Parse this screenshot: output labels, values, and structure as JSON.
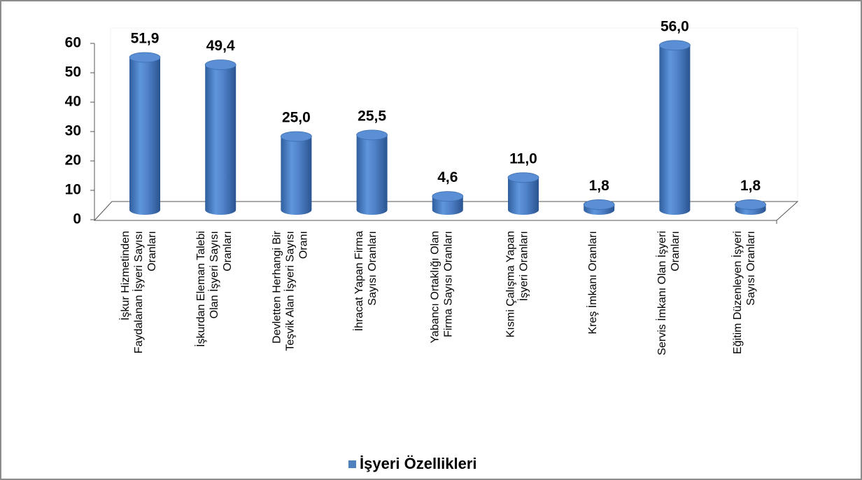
{
  "chart_data": {
    "type": "bar3d",
    "categories": [
      "İşkur Hizmetinden Faydalanan İşyeri Sayısı Oranları",
      "İşkurdan Eleman Talebi Olan İşyeri Sayısı Oranları",
      "Devletten Herhangi Bir Teşvik Alan İşyeri Sayısı Oranı",
      "İhracat Yapan Firma Sayısı Oranları",
      "Yabancı Ortaklığı Olan Firma Sayısı Oranları",
      "Kısmi Çalışma Yapan İşyeri Oranları",
      "Kreş İmkanı Oranları",
      "Servis İmkanı Olan İşyeri Oranları",
      "Eğitim Düzenleyen İşyeri Sayısı Oranları"
    ],
    "series": [
      {
        "name": "İşyeri Özellikleri",
        "color": "#4f81bd",
        "values": [
          51.9,
          49.4,
          25.0,
          25.5,
          4.6,
          11.0,
          1.8,
          56.0,
          1.8
        ],
        "value_labels": [
          "51,9",
          "49,4",
          "25,0",
          "25,5",
          "4,6",
          "11,0",
          "1,8",
          "56,0",
          "1,8"
        ]
      }
    ],
    "ylim": [
      0,
      60
    ],
    "yticks": [
      0,
      10,
      20,
      30,
      40,
      50,
      60
    ],
    "legend": "bottom"
  }
}
